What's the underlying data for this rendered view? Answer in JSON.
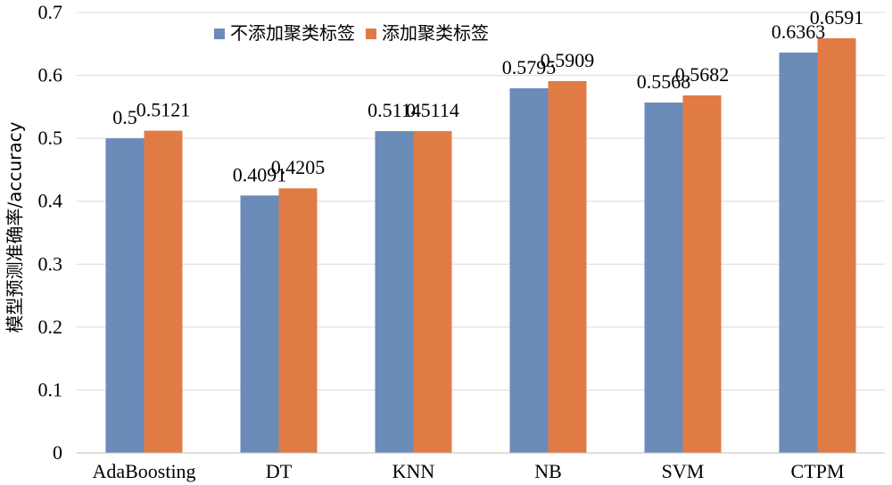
{
  "chart_data": {
    "type": "bar",
    "title": "",
    "xlabel": "",
    "ylabel": "模型预测准确率/accuracy",
    "ylim": [
      0,
      0.7
    ],
    "yticks": [
      "0",
      "0.1",
      "0.2",
      "0.3",
      "0.4",
      "0.5",
      "0.6",
      "0.7"
    ],
    "grid": true,
    "legend_position": "top-center",
    "categories": [
      "AdaBoosting",
      "DT",
      "KNN",
      "NB",
      "SVM",
      "CTPM"
    ],
    "series": [
      {
        "name": "不添加聚类标签",
        "color": "#6b8bb8",
        "values": [
          0.5,
          0.4091,
          0.5114,
          0.5795,
          0.5568,
          0.6363
        ],
        "labels": [
          "0.5",
          "0.4091",
          "0.5114",
          "0.5795",
          "0.5568",
          "0.6363"
        ]
      },
      {
        "name": "添加聚类标签",
        "color": "#e07b45",
        "values": [
          0.5121,
          0.4205,
          0.5114,
          0.5909,
          0.5682,
          0.6591
        ],
        "labels": [
          "0.5121",
          "0.4205",
          "0.5114",
          "0.5909",
          "0.5682",
          "0.6591"
        ]
      }
    ]
  }
}
